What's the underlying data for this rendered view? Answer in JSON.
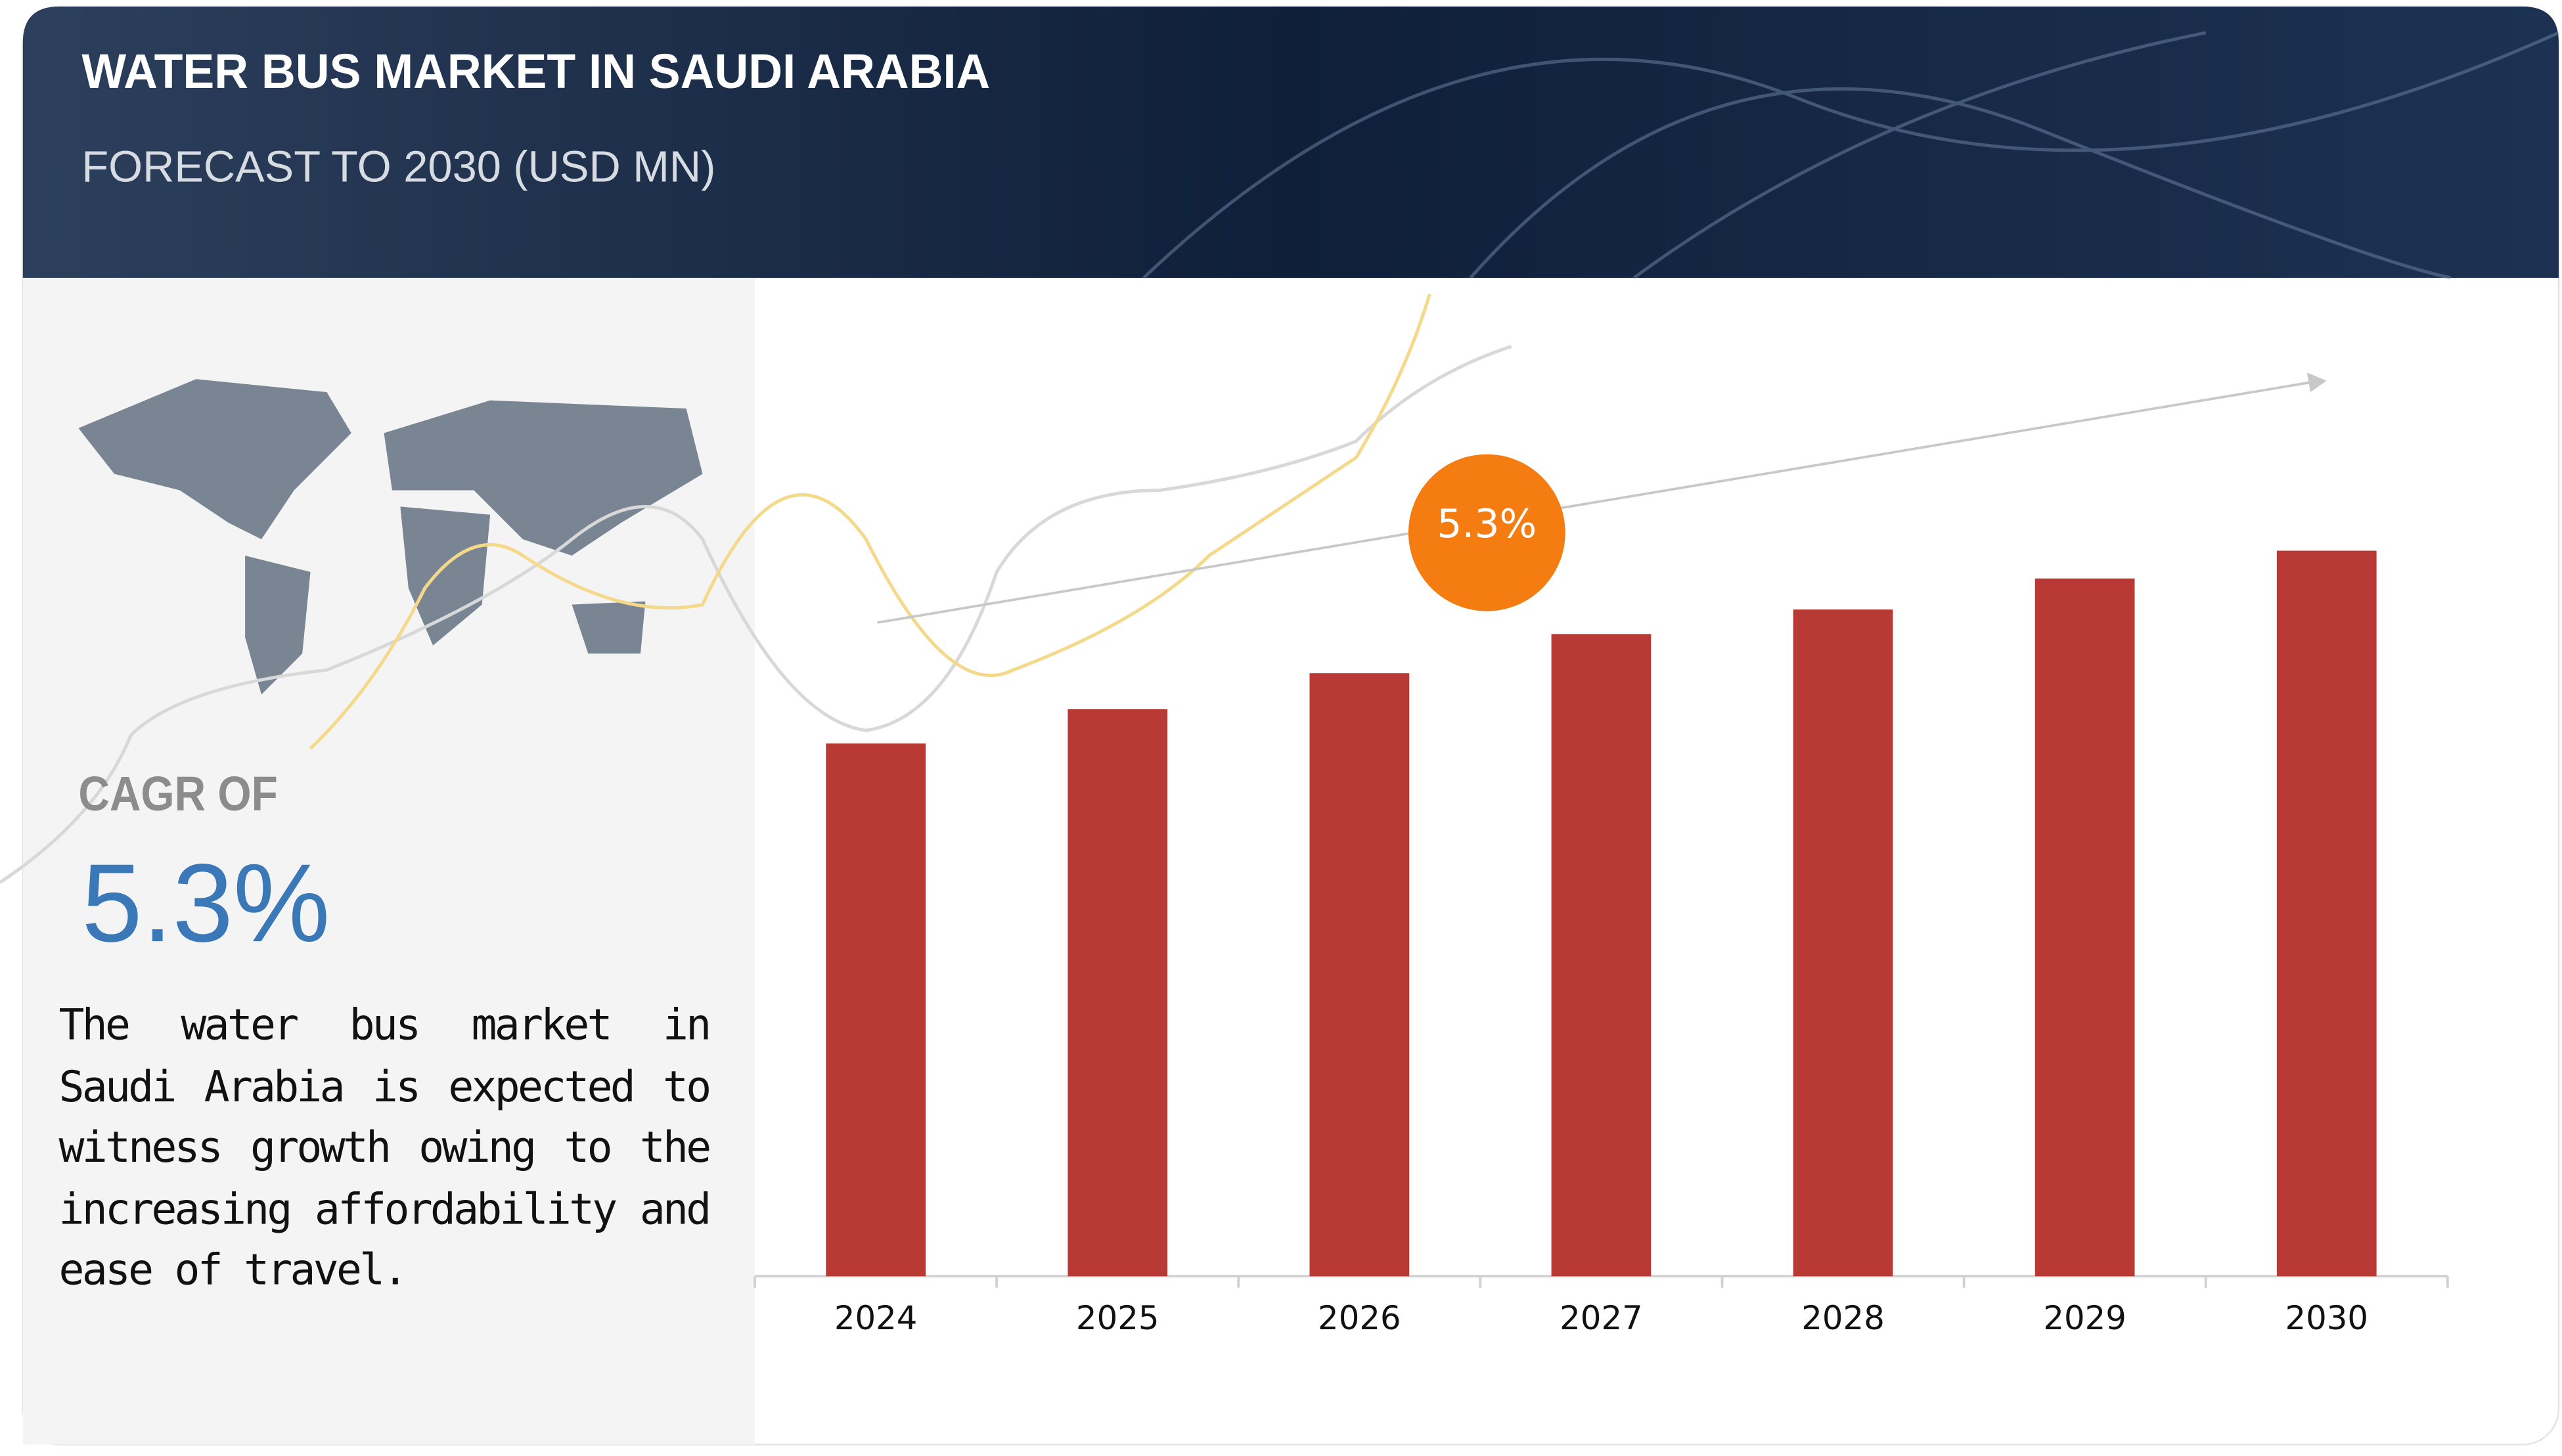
{
  "chart_data": {
    "type": "bar",
    "title": "WATER BUS MARKET IN SAUDI ARABIA",
    "subtitle": "FORECAST TO 2030 (USD MN)",
    "categories": [
      "2024",
      "2025",
      "2026",
      "2027",
      "2028",
      "2029",
      "2030"
    ],
    "values": [
      326,
      347,
      369,
      393,
      408,
      427,
      444
    ],
    "color": "#b93a34",
    "ylim": [
      0,
      600
    ],
    "annotation": "5.3%"
  },
  "side_panel": {
    "label": "CAGR OF",
    "value": "5.3%",
    "description": "The water bus market in Saudi Arabia is expected to witness growth owing to the increasing affordability and ease of travel."
  }
}
